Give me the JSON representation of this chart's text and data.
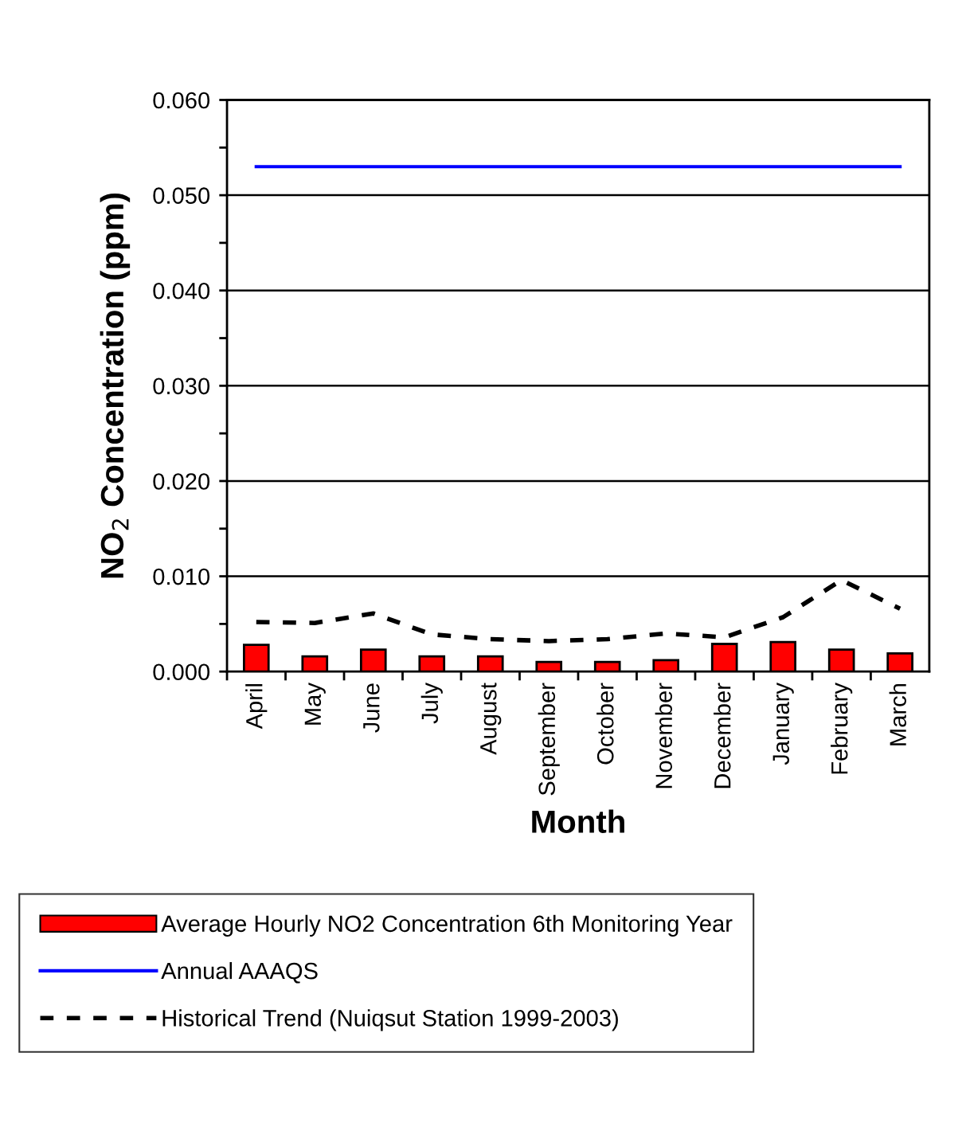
{
  "chart_data": {
    "type": "bar",
    "xlabel": "Month",
    "ylabel": "NO$_{2}$ Concentration (ppm)",
    "categories": [
      "April",
      "May",
      "June",
      "July",
      "August",
      "September",
      "October",
      "November",
      "December",
      "January",
      "February",
      "March"
    ],
    "series": [
      {
        "name": "Average Hourly NO2 Concentration 6th Monitoring Year",
        "color": "#ff0000",
        "values": [
          0.0028,
          0.0016,
          0.0023,
          0.0016,
          0.0016,
          0.001,
          0.001,
          0.0012,
          0.0029,
          0.0031,
          0.0023,
          0.0019
        ]
      },
      {
        "name": "Annual AAAQS",
        "type": "line",
        "color": "#0000ff",
        "line_style": "solid",
        "values": [
          0.053,
          0.053,
          0.053,
          0.053,
          0.053,
          0.053,
          0.053,
          0.053,
          0.053,
          0.053,
          0.053,
          0.053
        ]
      },
      {
        "name": "Historical Trend (Nuiqsut Station 1999-2003)",
        "type": "line",
        "color": "#000000",
        "line_style": "dashed",
        "values": [
          0.0052,
          0.0051,
          0.0061,
          0.0039,
          0.0034,
          0.0032,
          0.0034,
          0.004,
          0.0036,
          0.0057,
          0.0096,
          0.0066
        ]
      }
    ],
    "ylim": [
      0,
      0.06
    ],
    "yticks": [
      {
        "value": 0,
        "label": "0.000"
      },
      {
        "value": 0.005,
        "label": null
      },
      {
        "value": 0.01,
        "label": "0.010"
      },
      {
        "value": 0.015,
        "label": null
      },
      {
        "value": 0.02,
        "label": "0.020"
      },
      {
        "value": 0.025,
        "label": null
      },
      {
        "value": 0.03,
        "label": "0.030"
      },
      {
        "value": 0.035,
        "label": null
      },
      {
        "value": 0.04,
        "label": "0.040"
      },
      {
        "value": 0.045,
        "label": null
      },
      {
        "value": 0.05,
        "label": "0.050"
      },
      {
        "value": 0.055,
        "label": null
      },
      {
        "value": 0.06,
        "label": "0.060"
      }
    ],
    "grid": "y",
    "legend": "bottom",
    "marker": "none"
  }
}
